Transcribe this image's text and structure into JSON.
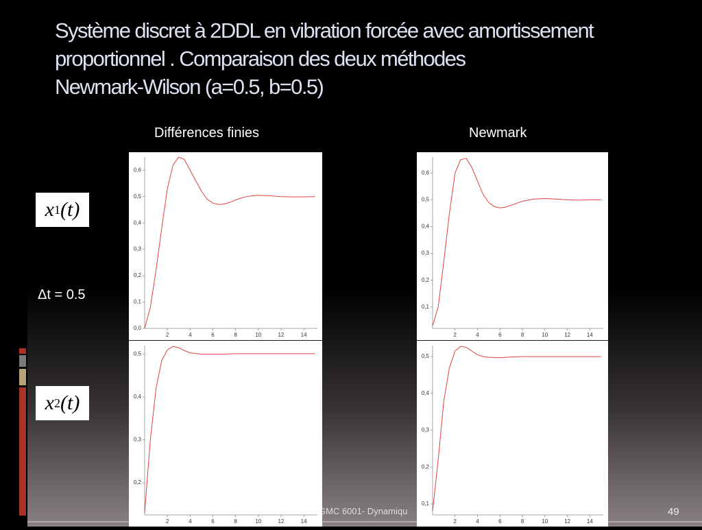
{
  "slide": {
    "title": [
      "Système discret à 2DDL en vibration forcée  avec amortissement",
      "proportionnel . Comparaison des deux méthodes",
      "Newmark-Wilson (a=0.5, b=0.5)"
    ],
    "column_labels": [
      "Différences finies",
      "Newmark"
    ],
    "row_labels": [
      {
        "var": "x",
        "sub": "1",
        "arg": "(t)"
      },
      {
        "var": "x",
        "sub": "2",
        "arg": "(t)"
      }
    ],
    "step_label": "Δt = 0.5",
    "footer": "GMC 6001-  Dynamiqu",
    "page_number": "49"
  },
  "chart_data": [
    {
      "type": "line",
      "color": "#e0403c",
      "x": [
        0,
        0.5,
        1,
        1.5,
        2,
        2.5,
        3,
        3.5,
        4,
        4.5,
        5,
        5.5,
        6,
        6.5,
        7,
        7.5,
        8,
        8.5,
        9,
        9.5,
        10,
        11,
        12,
        13,
        14,
        15
      ],
      "values": [
        0,
        0.08,
        0.22,
        0.38,
        0.53,
        0.62,
        0.65,
        0.64,
        0.6,
        0.56,
        0.52,
        0.49,
        0.475,
        0.47,
        0.472,
        0.478,
        0.487,
        0.495,
        0.5,
        0.503,
        0.505,
        0.503,
        0.5,
        0.499,
        0.499,
        0.5
      ],
      "xlim": [
        0,
        15.2
      ],
      "ylim": [
        0,
        0.65
      ],
      "xticks": [
        2,
        4,
        6,
        8,
        10,
        12,
        14
      ],
      "yticks": [
        {
          "value": 0,
          "label": "0,0"
        },
        {
          "value": 0.1,
          "label": "0,1"
        },
        {
          "value": 0.2,
          "label": "0,2"
        },
        {
          "value": 0.3,
          "label": "0,3"
        },
        {
          "value": 0.4,
          "label": "0,4"
        },
        {
          "value": 0.5,
          "label": "0,5"
        },
        {
          "value": 0.6,
          "label": "0,6"
        }
      ]
    },
    {
      "type": "line",
      "color": "#e0403c",
      "x": [
        0,
        0.5,
        1,
        1.5,
        2,
        2.5,
        3,
        3.5,
        4,
        4.5,
        5,
        5.5,
        6,
        6.5,
        7,
        8,
        9,
        10,
        11,
        12,
        13,
        14,
        15
      ],
      "values": [
        0.03,
        0.1,
        0.27,
        0.45,
        0.6,
        0.65,
        0.655,
        0.62,
        0.57,
        0.52,
        0.49,
        0.475,
        0.47,
        0.473,
        0.48,
        0.495,
        0.503,
        0.505,
        0.503,
        0.5,
        0.499,
        0.5,
        0.5
      ],
      "xlim": [
        0,
        15.2
      ],
      "ylim": [
        0.02,
        0.66
      ],
      "xticks": [
        2,
        4,
        6,
        8,
        10,
        12,
        14
      ],
      "yticks": [
        {
          "value": 0.1,
          "label": "0,1"
        },
        {
          "value": 0.2,
          "label": "0,2"
        },
        {
          "value": 0.3,
          "label": "0,3"
        },
        {
          "value": 0.4,
          "label": "0,4"
        },
        {
          "value": 0.5,
          "label": "0,5"
        },
        {
          "value": 0.6,
          "label": "0,6"
        }
      ]
    },
    {
      "type": "line",
      "color": "#e0403c",
      "x": [
        0,
        0.5,
        1,
        1.5,
        2,
        2.5,
        3,
        3.5,
        4,
        5,
        6,
        7,
        8,
        10,
        12,
        14,
        15
      ],
      "values": [
        0.13,
        0.3,
        0.42,
        0.485,
        0.51,
        0.518,
        0.515,
        0.508,
        0.503,
        0.5,
        0.5,
        0.5,
        0.501,
        0.501,
        0.501,
        0.501,
        0.501
      ],
      "xlim": [
        0,
        15.2
      ],
      "ylim": [
        0.125,
        0.52
      ],
      "xticks": [
        2,
        4,
        6,
        8,
        10,
        12,
        14
      ],
      "yticks": [
        {
          "value": 0.2,
          "label": "0,2"
        },
        {
          "value": 0.3,
          "label": "0,3"
        },
        {
          "value": 0.4,
          "label": "0,4"
        },
        {
          "value": 0.5,
          "label": "0,5"
        }
      ]
    },
    {
      "type": "line",
      "color": "#e0403c",
      "x": [
        0,
        0.5,
        1,
        1.5,
        2,
        2.5,
        3,
        3.5,
        4,
        4.5,
        5,
        6,
        7,
        8,
        10,
        14,
        15
      ],
      "values": [
        0.08,
        0.22,
        0.38,
        0.47,
        0.515,
        0.528,
        0.525,
        0.515,
        0.505,
        0.5,
        0.498,
        0.497,
        0.499,
        0.5,
        0.5,
        0.5,
        0.5
      ],
      "xlim": [
        0,
        15.2
      ],
      "ylim": [
        0.07,
        0.53
      ],
      "xticks": [
        2,
        4,
        6,
        8,
        10,
        12,
        14
      ],
      "yticks": [
        {
          "value": 0.1,
          "label": "0,1"
        },
        {
          "value": 0.2,
          "label": "0,2"
        },
        {
          "value": 0.3,
          "label": "0,3"
        },
        {
          "value": 0.4,
          "label": "0,4"
        },
        {
          "value": 0.5,
          "label": "0,5"
        }
      ]
    }
  ]
}
